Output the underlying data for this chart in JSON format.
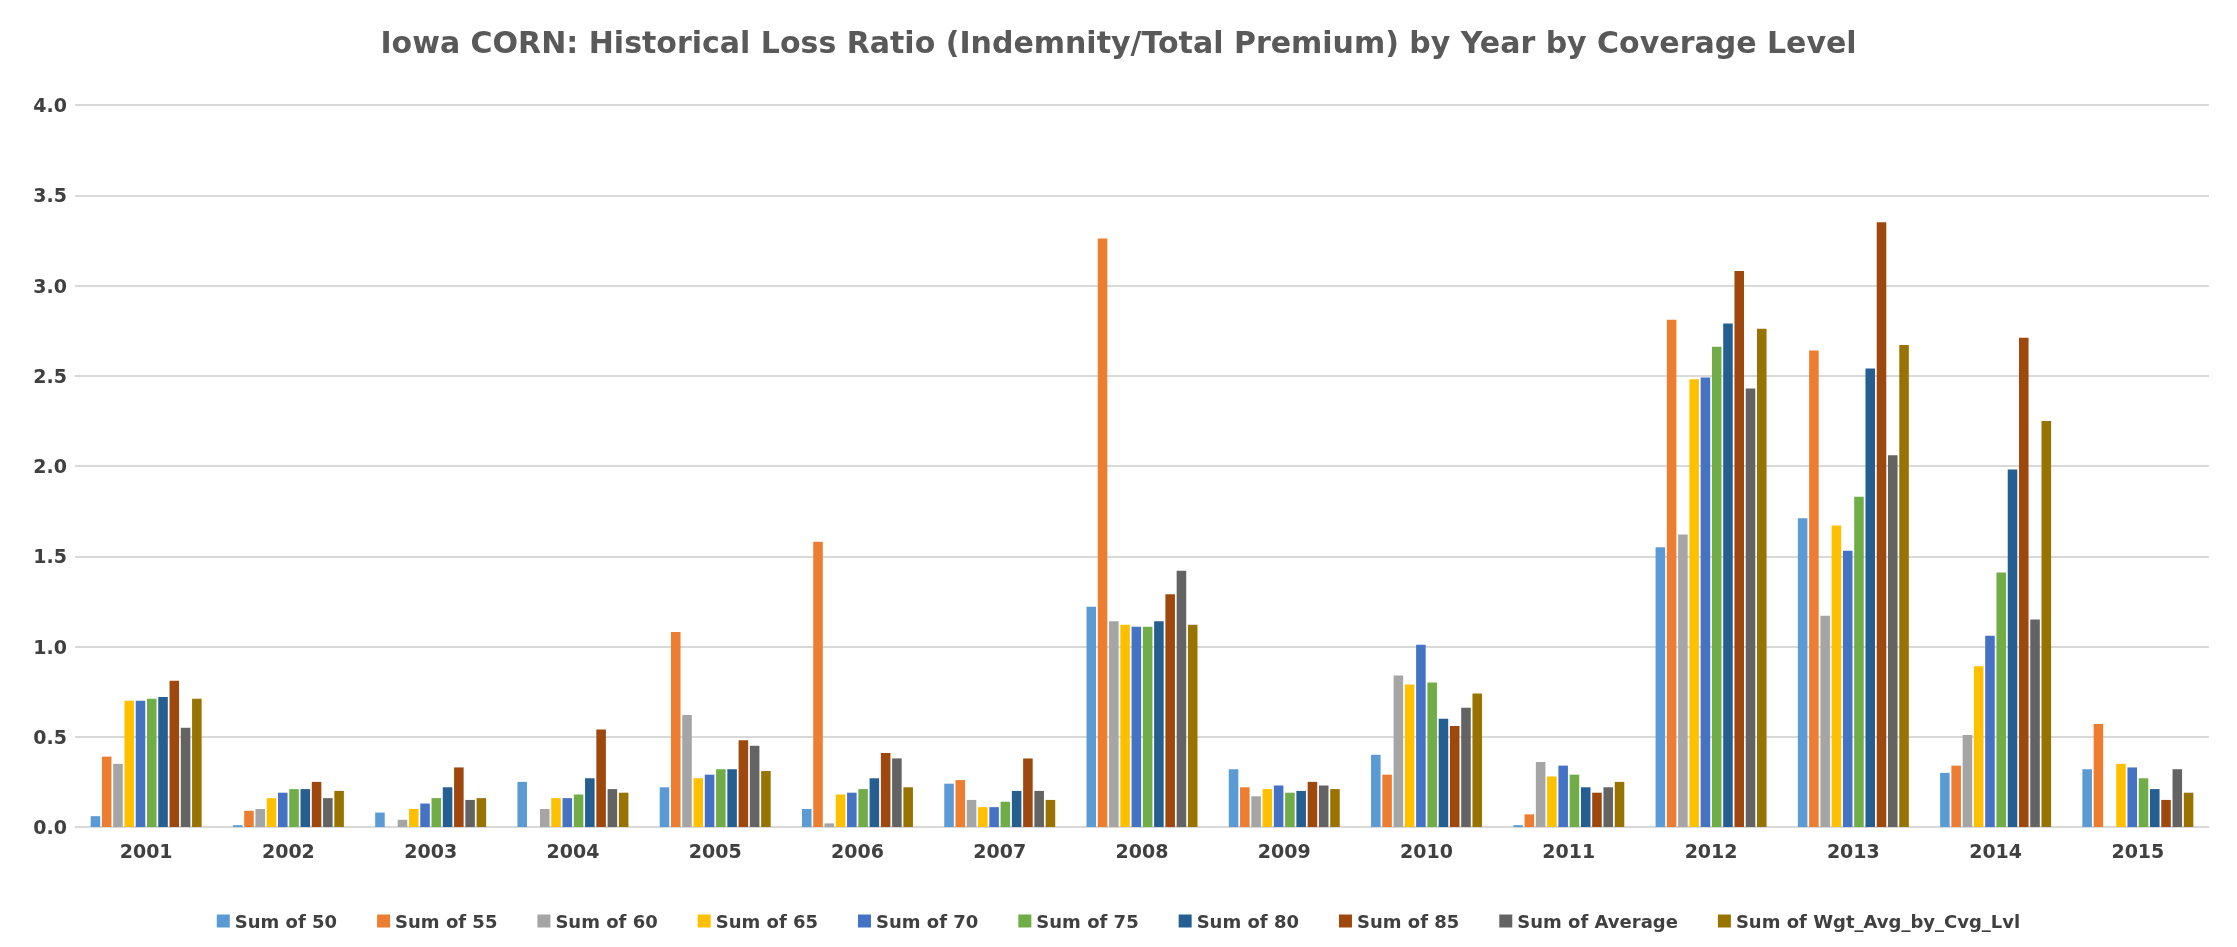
{
  "chart_data": {
    "type": "bar",
    "title": "Iowa CORN: Historical Loss Ratio (Indemnity/Total Premium) by Year by Coverage Level",
    "categories": [
      "2001",
      "2002",
      "2003",
      "2004",
      "2005",
      "2006",
      "2007",
      "2008",
      "2009",
      "2010",
      "2011",
      "2012",
      "2013",
      "2014",
      "2015"
    ],
    "series": [
      {
        "name": "Sum of 50",
        "color": "#5b9bd5",
        "values": [
          0.06,
          0.01,
          0.08,
          0.25,
          0.22,
          0.1,
          0.24,
          1.22,
          0.32,
          0.4,
          0.01,
          1.55,
          1.71,
          0.3,
          0.32
        ]
      },
      {
        "name": "Sum of 55",
        "color": "#ed7d31",
        "values": [
          0.39,
          0.09,
          0,
          0,
          1.08,
          1.58,
          0.26,
          3.26,
          0.22,
          0.29,
          0.07,
          2.81,
          2.64,
          0.34,
          0.57
        ]
      },
      {
        "name": "Sum of 60",
        "color": "#a5a5a5",
        "values": [
          0.35,
          0.1,
          0.04,
          0.1,
          0.62,
          0.02,
          0.15,
          1.14,
          0.17,
          0.84,
          0.36,
          1.62,
          1.17,
          0.51,
          0
        ]
      },
      {
        "name": "Sum of 65",
        "color": "#ffc000",
        "values": [
          0.7,
          0.16,
          0.1,
          0.16,
          0.27,
          0.18,
          0.11,
          1.12,
          0.21,
          0.79,
          0.28,
          2.48,
          1.67,
          0.89,
          0.35
        ]
      },
      {
        "name": "Sum of 70",
        "color": "#4472c4",
        "values": [
          0.7,
          0.19,
          0.13,
          0.16,
          0.29,
          0.19,
          0.11,
          1.11,
          0.23,
          1.01,
          0.34,
          2.49,
          1.53,
          1.06,
          0.33
        ]
      },
      {
        "name": "Sum of 75",
        "color": "#70ad47",
        "values": [
          0.71,
          0.21,
          0.16,
          0.18,
          0.32,
          0.21,
          0.14,
          1.11,
          0.19,
          0.8,
          0.29,
          2.66,
          1.83,
          1.41,
          0.27
        ]
      },
      {
        "name": "Sum of 80",
        "color": "#255e91",
        "values": [
          0.72,
          0.21,
          0.22,
          0.27,
          0.32,
          0.27,
          0.2,
          1.14,
          0.2,
          0.6,
          0.22,
          2.79,
          2.54,
          1.98,
          0.21
        ]
      },
      {
        "name": "Sum of 85",
        "color": "#9e480e",
        "values": [
          0.81,
          0.25,
          0.33,
          0.54,
          0.48,
          0.41,
          0.38,
          1.29,
          0.25,
          0.56,
          0.19,
          3.08,
          3.35,
          2.71,
          0.15
        ]
      },
      {
        "name": "Sum of Average",
        "color": "#636363",
        "values": [
          0.55,
          0.16,
          0.15,
          0.21,
          0.45,
          0.38,
          0.2,
          1.42,
          0.23,
          0.66,
          0.22,
          2.43,
          2.06,
          1.15,
          0.32
        ]
      },
      {
        "name": "Sum of Wgt_Avg_by_Cvg_Lvl",
        "color": "#997300",
        "values": [
          0.71,
          0.2,
          0.16,
          0.19,
          0.31,
          0.22,
          0.15,
          1.12,
          0.21,
          0.74,
          0.25,
          2.76,
          2.67,
          2.25,
          0.19
        ]
      }
    ],
    "ylim": [
      0,
      4
    ],
    "yticks": [
      {
        "value": 0,
        "label": "0.0"
      },
      {
        "value": 0.5,
        "label": "0.5"
      },
      {
        "value": 1,
        "label": "1.0"
      },
      {
        "value": 1.5,
        "label": "1.5"
      },
      {
        "value": 2,
        "label": "2.0"
      },
      {
        "value": 2.5,
        "label": "2.5"
      },
      {
        "value": 3,
        "label": "3.0"
      },
      {
        "value": 3.5,
        "label": "3.5"
      },
      {
        "value": 4,
        "label": "4.0"
      }
    ],
    "grid": "y",
    "legend": "bottom"
  }
}
